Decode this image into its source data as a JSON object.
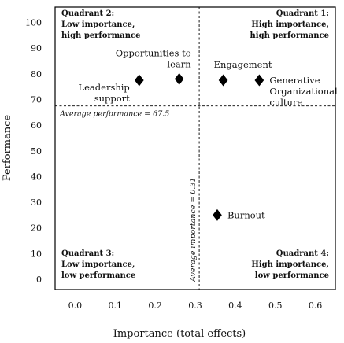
{
  "chart_data": {
    "type": "scatter",
    "xlabel": "Importance (total effects)",
    "ylabel": "Performance",
    "xlim": [
      -0.05,
      0.65
    ],
    "ylim": [
      -4,
      106
    ],
    "xticks": [
      "0.0",
      "0.1",
      "0.2",
      "0.3",
      "0.4",
      "0.5",
      "0.6"
    ],
    "yticks": [
      "0",
      "10",
      "20",
      "30",
      "40",
      "50",
      "60",
      "70",
      "80",
      "90",
      "100"
    ],
    "points": [
      {
        "label": [
          "Leadership",
          "support"
        ],
        "x": 0.16,
        "y": 77.5,
        "label_pos": "left-below"
      },
      {
        "label": [
          "Opportunities to",
          "learn"
        ],
        "x": 0.26,
        "y": 78,
        "label_pos": "above"
      },
      {
        "label": [
          "Engagement"
        ],
        "x": 0.37,
        "y": 77.5,
        "label_pos": "above"
      },
      {
        "label": [
          "Generative",
          "Organizational",
          "culture"
        ],
        "x": 0.46,
        "y": 77.5,
        "label_pos": "right"
      },
      {
        "label": [
          "Burnout"
        ],
        "x": 0.355,
        "y": 25,
        "label_pos": "right"
      }
    ],
    "reference_lines": {
      "horizontal": {
        "value": 67.5,
        "label": "Average performance = 67.5"
      },
      "vertical": {
        "value": 0.31,
        "label": "Average importance = 0.31"
      }
    },
    "quadrants": [
      {
        "id": "q2",
        "lines": [
          "Quadrant 2:",
          "Low importance,",
          "high performance"
        ],
        "position": "top-left"
      },
      {
        "id": "q1",
        "lines": [
          "Quadrant 1:",
          "High importance,",
          "high performance"
        ],
        "position": "top-right"
      },
      {
        "id": "q3",
        "lines": [
          "Quadrant 3:",
          "Low importance,",
          "low performance"
        ],
        "position": "bottom-left"
      },
      {
        "id": "q4",
        "lines": [
          "Quadrant 4:",
          "High importance,",
          "low performance"
        ],
        "position": "bottom-right"
      }
    ]
  }
}
